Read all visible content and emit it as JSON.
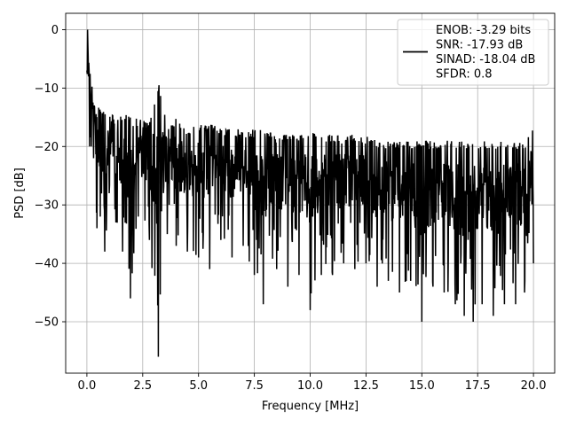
{
  "chart_data": {
    "type": "line",
    "title": "",
    "xlabel": "Frequency [MHz]",
    "ylabel": "PSD [dB]",
    "xlim": [
      -0.95,
      20.95
    ],
    "ylim": [
      -58.8,
      2.8
    ],
    "xticks": [
      0.0,
      2.5,
      5.0,
      7.5,
      10.0,
      12.5,
      15.0,
      17.5,
      20.0
    ],
    "xtick_labels": [
      "0.0",
      "2.5",
      "5.0",
      "7.5",
      "10.0",
      "12.5",
      "15.0",
      "17.5",
      "20.0"
    ],
    "yticks": [
      0,
      -10,
      -20,
      -30,
      -40,
      -50
    ],
    "ytick_labels": [
      "0",
      "−10",
      "−20",
      "−30",
      "−40",
      "−50"
    ],
    "grid": true,
    "legend_position": "top-right",
    "legend_lines": [
      "ENOB: -3.29 bits",
      "SNR: -17.93 dB",
      "SINAD: -18.04 dB",
      "SFDR: 0.8"
    ],
    "line_color": "#000000",
    "series": [
      {
        "x": [
          0.0,
          0.03,
          0.07,
          0.12,
          0.2,
          0.3,
          0.45,
          0.6,
          0.8,
          1.0,
          1.3,
          1.6,
          1.95,
          2.3,
          2.8,
          3.2,
          3.6,
          4.0,
          4.5,
          5.0,
          5.5,
          6.0,
          6.5,
          7.0,
          7.5,
          7.9,
          8.5,
          9.0,
          9.5,
          10.0,
          10.5,
          11.0,
          11.5,
          12.0,
          12.5,
          13.0,
          13.5,
          14.0,
          14.5,
          15.0,
          15.5,
          16.0,
          16.5,
          16.9,
          17.3,
          17.7,
          18.2,
          18.7,
          19.2,
          19.6,
          20.0
        ],
        "y": [
          -7,
          0,
          -3,
          -6,
          -9,
          -10,
          -12,
          -13,
          -14,
          -14,
          -15,
          -14,
          -15,
          -15,
          -16,
          -9,
          -16,
          -15,
          -17,
          -16,
          -16,
          -17,
          -17,
          -17,
          -17,
          -17,
          -18,
          -18,
          -18,
          -17,
          -18,
          -18,
          -18,
          -18,
          -18,
          -19,
          -19,
          -19,
          -19,
          -19,
          -19,
          -19,
          -19,
          -19,
          -19,
          -19,
          -19,
          -19,
          -19,
          -19,
          -16
        ],
        "y_min": [
          -15,
          -6,
          -8,
          -20,
          -20,
          -22,
          -34,
          -32,
          -38,
          -28,
          -33,
          -38,
          -46,
          -32,
          -36,
          -56,
          -35,
          -37,
          -38,
          -39,
          -41,
          -36,
          -39,
          -37,
          -42,
          -47,
          -41,
          -44,
          -42,
          -48,
          -42,
          -42,
          -40,
          -41,
          -40,
          -44,
          -43,
          -45,
          -43,
          -50,
          -44,
          -45,
          -47,
          -49,
          -50,
          -47,
          -49,
          -47,
          -47,
          -45,
          -40
        ]
      }
    ]
  }
}
